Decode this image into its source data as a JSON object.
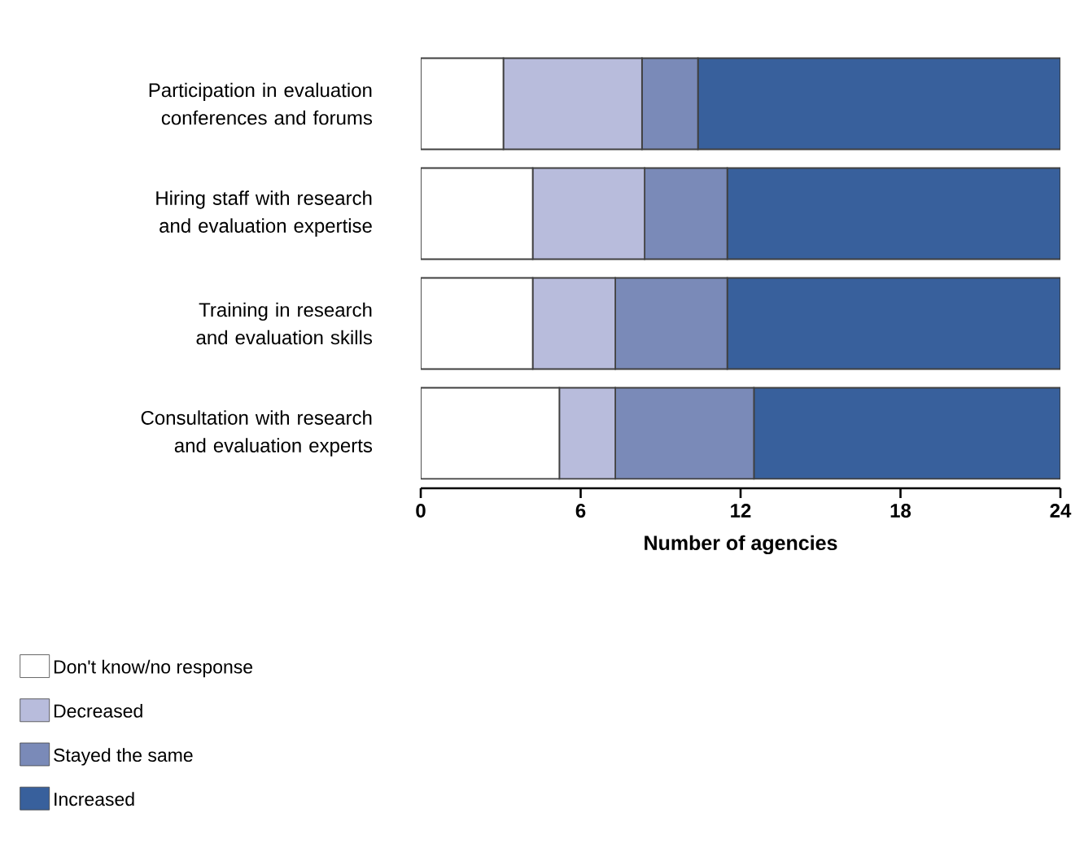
{
  "chart_data": {
    "type": "bar",
    "orientation": "horizontal",
    "stacked": true,
    "xlabel": "Number of agencies",
    "categories": [
      "Participation in evaluation conferences and forums",
      "Hiring staff with research and evaluation expertise",
      "Training in research and evaluation skills",
      "Consultation with research and evaluation experts"
    ],
    "series": [
      {
        "name": "Don't know/no response",
        "color": "#ffffff",
        "values": [
          3.1,
          4.2,
          4.2,
          5.2
        ]
      },
      {
        "name": "Decreased",
        "color": "#b8bcdc",
        "values": [
          5.2,
          4.2,
          3.1,
          2.1
        ]
      },
      {
        "name": "Stayed the same",
        "color": "#7a8ab8",
        "values": [
          2.1,
          3.1,
          4.2,
          5.2
        ]
      },
      {
        "name": "Increased",
        "color": "#38609c",
        "values": [
          13.6,
          12.5,
          12.5,
          11.5
        ]
      }
    ],
    "xlim": [
      0,
      24
    ],
    "xticks": [
      0,
      6,
      12,
      18,
      24
    ],
    "grid": false,
    "legend": "bottom left"
  }
}
